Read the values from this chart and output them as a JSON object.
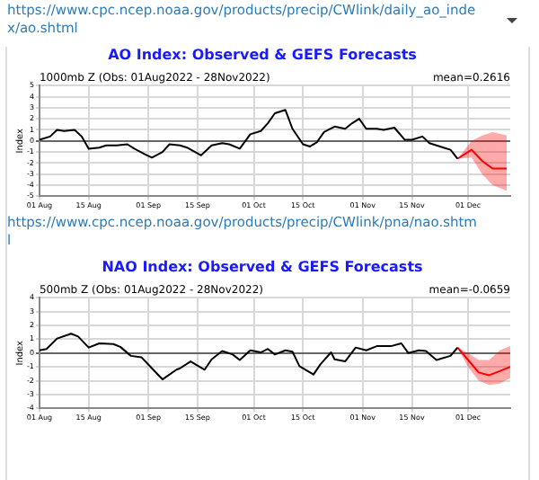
{
  "chart_data": [
    {
      "type": "line",
      "title": "AO Index: Observed & GEFS Forecasts",
      "ylabel": "Index",
      "annotations": [
        "https://www.cpc.ncep.noaa.gov/products/precip/CWlink/daily_ao_index/ao.shtml",
        "1000mb Z (Obs: 01Aug2022 - 28Nov2022)",
        "mean=0.2616"
      ],
      "xlim": [
        "2022-08-01",
        "2022-12-13"
      ],
      "xticks": [
        {
          "value": "2022-08-01",
          "label": "01 Aug"
        },
        {
          "value": "2022-08-15",
          "label": "15 Aug"
        },
        {
          "value": "2022-09-01",
          "label": "01 Sep"
        },
        {
          "value": "2022-09-15",
          "label": "15 Sep"
        },
        {
          "value": "2022-10-01",
          "label": "01 Oct"
        },
        {
          "value": "2022-10-15",
          "label": "15 Oct"
        },
        {
          "value": "2022-11-01",
          "label": "01 Nov"
        },
        {
          "value": "2022-11-15",
          "label": "15 Nov"
        },
        {
          "value": "2022-12-01",
          "label": "01 Dec"
        }
      ],
      "ylim": [
        -5,
        5
      ],
      "yticks": [
        -5,
        -4,
        -3,
        -2,
        -1,
        0,
        1,
        2,
        3,
        4,
        5
      ],
      "grid": true,
      "series": [
        {
          "color": "#000000",
          "x": [
            "2022-08-01",
            "2022-08-04",
            "2022-08-06",
            "2022-08-08",
            "2022-08-11",
            "2022-08-13",
            "2022-08-15",
            "2022-08-18",
            "2022-08-20",
            "2022-08-23",
            "2022-08-26",
            "2022-08-28",
            "2022-08-31",
            "2022-09-02",
            "2022-09-05",
            "2022-09-07",
            "2022-09-10",
            "2022-09-12",
            "2022-09-16",
            "2022-09-19",
            "2022-09-22",
            "2022-09-24",
            "2022-09-27",
            "2022-09-30",
            "2022-10-03",
            "2022-10-05",
            "2022-10-07",
            "2022-10-10",
            "2022-10-12",
            "2022-10-15",
            "2022-10-17",
            "2022-10-19",
            "2022-10-21",
            "2022-10-24",
            "2022-10-27",
            "2022-10-29",
            "2022-10-31",
            "2022-11-02",
            "2022-11-05",
            "2022-11-07",
            "2022-11-10",
            "2022-11-13",
            "2022-11-15",
            "2022-11-18",
            "2022-11-20",
            "2022-11-24",
            "2022-11-26",
            "2022-11-28"
          ],
          "values": [
            0.1,
            0.4,
            1.0,
            0.9,
            1.0,
            0.4,
            -0.7,
            -0.6,
            -0.4,
            -0.4,
            -0.3,
            -0.7,
            -1.2,
            -1.5,
            -1.0,
            -0.3,
            -0.4,
            -0.6,
            -1.3,
            -0.4,
            -0.2,
            -0.3,
            -0.7,
            0.6,
            0.9,
            1.6,
            2.5,
            2.8,
            1.1,
            -0.3,
            -0.5,
            -0.1,
            0.8,
            1.3,
            1.1,
            1.6,
            2.0,
            1.1,
            1.1,
            1.0,
            1.2,
            0.1,
            0.1,
            0.4,
            -0.2,
            -0.6,
            -0.8,
            -1.6
          ]
        },
        {
          "color": "#ff0000",
          "x": [
            "2022-11-28",
            "2022-12-02",
            "2022-12-05",
            "2022-12-08",
            "2022-12-12"
          ],
          "values": [
            -1.6,
            -0.8,
            -1.8,
            -2.5,
            -2.5
          ],
          "lower": [
            -1.6,
            -1.5,
            -3.0,
            -4.0,
            -4.5
          ],
          "upper": [
            -1.6,
            0.0,
            0.5,
            0.8,
            0.5
          ]
        }
      ]
    },
    {
      "type": "line",
      "title": "NAO Index: Observed & GEFS Forecasts",
      "ylabel": "Index",
      "annotations": [
        "https://www.cpc.ncep.noaa.gov/products/precip/CWlink/pna/nao.shtml",
        "500mb Z (Obs: 01Aug2022 - 28Nov2022)",
        "mean=-0.0659"
      ],
      "xlim": [
        "2022-08-01",
        "2022-12-13"
      ],
      "xticks": [
        {
          "value": "2022-08-01",
          "label": "01 Aug"
        },
        {
          "value": "2022-08-15",
          "label": "15 Aug"
        },
        {
          "value": "2022-09-01",
          "label": "01 Sep"
        },
        {
          "value": "2022-09-15",
          "label": "15 Sep"
        },
        {
          "value": "2022-10-01",
          "label": "01 Oct"
        },
        {
          "value": "2022-10-15",
          "label": "15 Oct"
        },
        {
          "value": "2022-11-01",
          "label": "01 Nov"
        },
        {
          "value": "2022-11-15",
          "label": "15 Nov"
        },
        {
          "value": "2022-12-01",
          "label": "01 Dec"
        }
      ],
      "ylim": [
        -4,
        4
      ],
      "yticks": [
        -4,
        -3,
        -2,
        -1,
        0,
        1,
        2,
        3,
        4
      ],
      "grid": true,
      "series": [
        {
          "color": "#000000",
          "x": [
            "2022-08-01",
            "2022-08-03",
            "2022-08-06",
            "2022-08-10",
            "2022-08-12",
            "2022-08-15",
            "2022-08-18",
            "2022-08-22",
            "2022-08-24",
            "2022-08-27",
            "2022-08-30",
            "2022-09-02",
            "2022-09-05",
            "2022-09-09",
            "2022-09-10",
            "2022-09-13",
            "2022-09-17",
            "2022-09-19",
            "2022-09-22",
            "2022-09-25",
            "2022-09-27",
            "2022-09-30",
            "2022-10-03",
            "2022-10-05",
            "2022-10-07",
            "2022-10-10",
            "2022-10-12",
            "2022-10-14",
            "2022-10-18",
            "2022-10-20",
            "2022-10-23",
            "2022-10-24",
            "2022-10-27",
            "2022-10-30",
            "2022-11-02",
            "2022-11-05",
            "2022-11-09",
            "2022-11-12",
            "2022-11-14",
            "2022-11-17",
            "2022-11-19",
            "2022-11-22",
            "2022-11-26",
            "2022-11-28"
          ],
          "values": [
            0.2,
            0.3,
            1.05,
            1.4,
            1.2,
            0.4,
            0.7,
            0.65,
            0.45,
            -0.2,
            -0.3,
            -1.1,
            -1.9,
            -1.2,
            -1.1,
            -0.6,
            -1.2,
            -0.45,
            0.15,
            -0.1,
            -0.5,
            0.2,
            0.05,
            0.3,
            -0.1,
            0.2,
            0.1,
            -0.95,
            -1.55,
            -0.8,
            0.05,
            -0.45,
            -0.6,
            0.4,
            0.2,
            0.5,
            0.5,
            0.7,
            0,
            0.2,
            0.15,
            -0.5,
            -0.2,
            0.4
          ]
        },
        {
          "color": "#ff0000",
          "x": [
            "2022-11-28",
            "2022-12-01",
            "2022-12-04",
            "2022-12-07",
            "2022-12-10",
            "2022-12-13"
          ],
          "values": [
            0.4,
            -0.5,
            -1.4,
            -1.6,
            -1.3,
            -1.0
          ],
          "lower": [
            0.4,
            -1.0,
            -2.0,
            -2.3,
            -2.2,
            -1.8
          ],
          "upper": [
            0.4,
            0.0,
            -0.5,
            -0.5,
            0.2,
            0.5
          ]
        }
      ]
    }
  ]
}
